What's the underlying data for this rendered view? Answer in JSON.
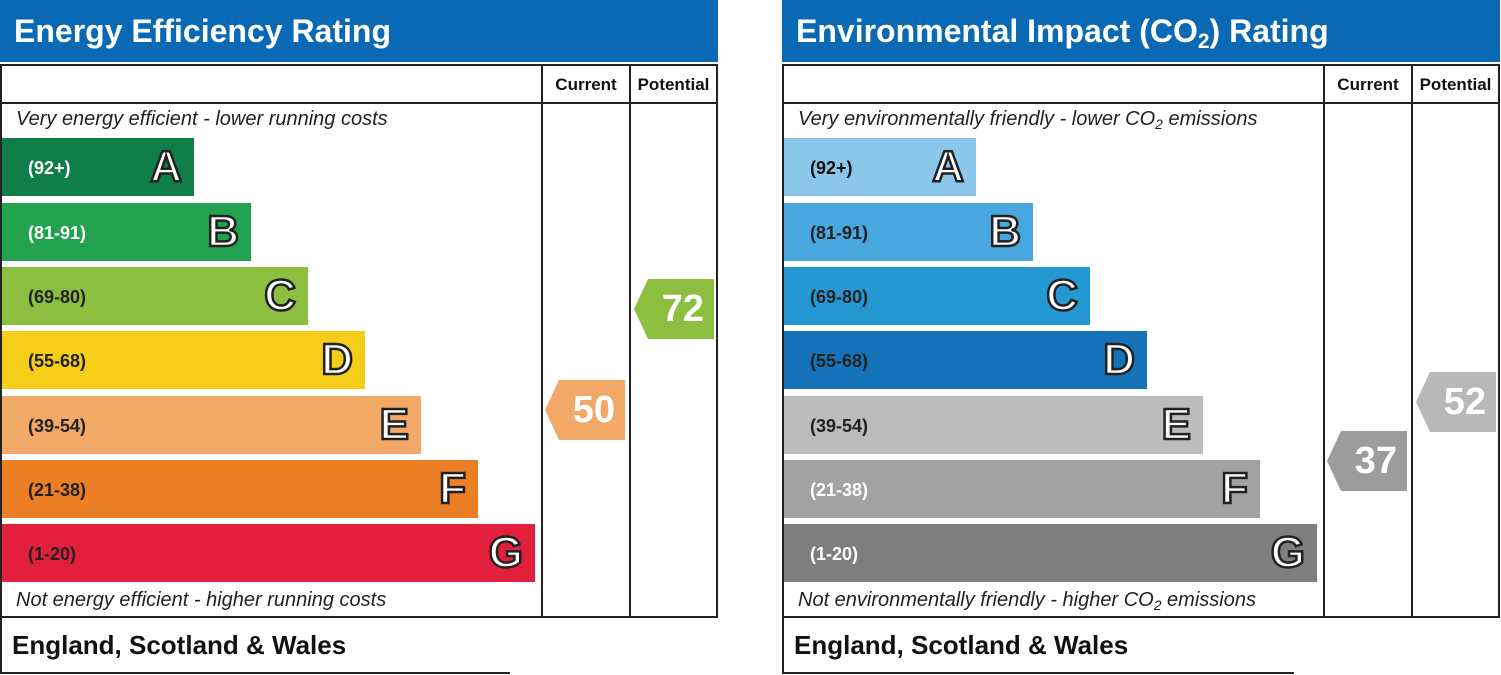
{
  "energy": {
    "title": "Energy Efficiency Rating",
    "header_current": "Current",
    "header_potential": "Potential",
    "top_caption": "Very energy efficient - lower running costs",
    "bottom_caption": "Not energy efficient - higher running costs",
    "footer": "England, Scotland & Wales",
    "bands": [
      {
        "range": "(92+)",
        "letter": "A",
        "color": "#0f7d47",
        "text_color": "#ffffff"
      },
      {
        "range": "(81-91)",
        "letter": "B",
        "color": "#22a24f",
        "text_color": "#ffffff"
      },
      {
        "range": "(69-80)",
        "letter": "C",
        "color": "#8cbe3f",
        "text_color": "#222222"
      },
      {
        "range": "(55-68)",
        "letter": "D",
        "color": "#f6cd19",
        "text_color": "#222222"
      },
      {
        "range": "(39-54)",
        "letter": "E",
        "color": "#f2a866",
        "text_color": "#222222"
      },
      {
        "range": "(21-38)",
        "letter": "F",
        "color": "#eb7f26",
        "text_color": "#222222"
      },
      {
        "range": "(1-20)",
        "letter": "G",
        "color": "#e21f3c",
        "text_color": "#222222"
      }
    ],
    "current": {
      "value": "50",
      "color": "#f2a866"
    },
    "potential": {
      "value": "72",
      "color": "#8cbe3f"
    }
  },
  "environmental": {
    "title_main": "Environmental Impact (CO",
    "title_sub": "2",
    "title_end": ") Rating",
    "header_current": "Current",
    "header_potential": "Potential",
    "top_caption_main": "Very environmentally friendly - lower CO",
    "top_caption_sub": "2",
    "top_caption_end": " emissions",
    "bottom_caption_main": "Not environmentally friendly - higher CO",
    "bottom_caption_sub": "2",
    "bottom_caption_end": " emissions",
    "footer": "England, Scotland & Wales",
    "bands": [
      {
        "range": "(92+)",
        "letter": "A",
        "color": "#8ac7ea",
        "text_color": "#111111"
      },
      {
        "range": "(81-91)",
        "letter": "B",
        "color": "#48a8dd",
        "text_color": "#222222"
      },
      {
        "range": "(69-80)",
        "letter": "C",
        "color": "#2598d4",
        "text_color": "#222222"
      },
      {
        "range": "(55-68)",
        "letter": "D",
        "color": "#1672b9",
        "text_color": "#222222"
      },
      {
        "range": "(39-54)",
        "letter": "E",
        "color": "#bcbcbc",
        "text_color": "#222222"
      },
      {
        "range": "(21-38)",
        "letter": "F",
        "color": "#a2a2a2",
        "text_color": "#ffffff"
      },
      {
        "range": "(1-20)",
        "letter": "G",
        "color": "#7e7e7e",
        "text_color": "#ffffff"
      }
    ],
    "current": {
      "value": "37",
      "color": "#9c9c9c"
    },
    "potential": {
      "value": "52",
      "color": "#b8b8b8"
    }
  }
}
